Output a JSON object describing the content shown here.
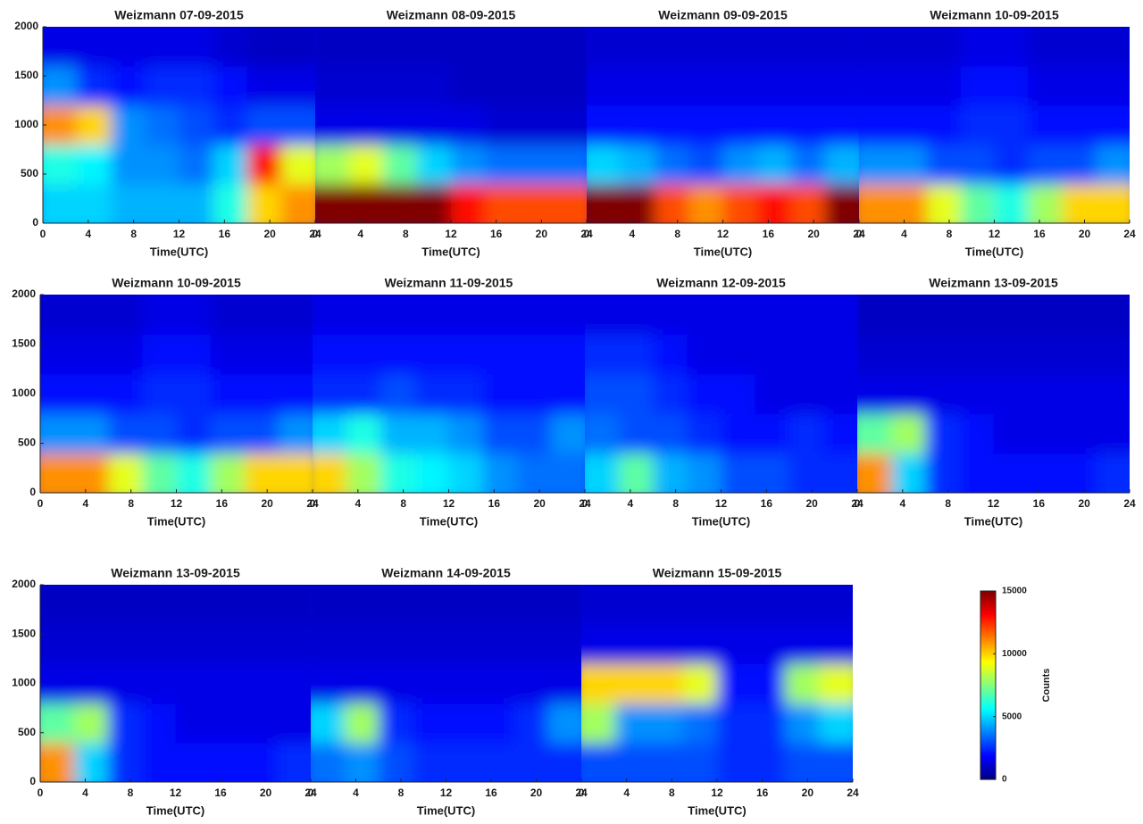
{
  "chart_data": [
    {
      "type": "heatmap",
      "title": "Weizmann 07-09-2015",
      "xlabel": "Time(UTC)",
      "xlim": [
        0,
        24
      ],
      "xticks": [
        0,
        4,
        8,
        12,
        16,
        20,
        24
      ],
      "ylim": [
        0,
        2000
      ],
      "yticks": [
        0,
        500,
        1000,
        1500,
        2000
      ],
      "xbins": [
        0,
        3,
        6,
        9,
        12,
        15,
        18,
        21,
        24
      ],
      "ybins": [
        0,
        400,
        800,
        1200,
        1600,
        2000
      ],
      "z": [
        [
          5000,
          5000,
          4500,
          4500,
          4500,
          6000,
          10000,
          11000
        ],
        [
          6000,
          5500,
          4000,
          4000,
          3500,
          5000,
          13000,
          9000
        ],
        [
          11000,
          10000,
          4000,
          3500,
          3000,
          2500,
          3000,
          3000
        ],
        [
          4000,
          2500,
          2000,
          2500,
          2500,
          2000,
          1500,
          1500
        ],
        [
          1500,
          1500,
          1500,
          1500,
          1500,
          1200,
          1000,
          1000
        ]
      ]
    },
    {
      "type": "heatmap",
      "title": "Weizmann 08-09-2015",
      "xlabel": "Time(UTC)",
      "xlim": [
        0,
        24
      ],
      "xticks": [
        0,
        4,
        8,
        12,
        16,
        20,
        24
      ],
      "ylim": [
        0,
        2000
      ],
      "xbins": [
        0,
        3,
        6,
        9,
        12,
        15,
        18,
        21,
        24
      ],
      "ybins": [
        0,
        400,
        800,
        1200,
        1600,
        2000
      ],
      "z": [
        [
          15000,
          15000,
          15000,
          15000,
          13000,
          12000,
          12000,
          12000
        ],
        [
          8000,
          9000,
          7000,
          5000,
          4000,
          3500,
          3500,
          3500
        ],
        [
          1500,
          1500,
          1500,
          1500,
          1500,
          1200,
          1200,
          1200
        ],
        [
          1200,
          1200,
          1200,
          1200,
          1000,
          1000,
          1000,
          1000
        ],
        [
          1000,
          1000,
          1000,
          1000,
          1000,
          1000,
          1000,
          1000
        ]
      ]
    },
    {
      "type": "heatmap",
      "title": "Weizmann 09-09-2015",
      "xlabel": "Time(UTC)",
      "xlim": [
        0,
        24
      ],
      "xticks": [
        0,
        4,
        8,
        12,
        16,
        20,
        24
      ],
      "ylim": [
        0,
        2000
      ],
      "xbins": [
        0,
        3,
        6,
        9,
        12,
        15,
        18,
        21,
        24
      ],
      "ybins": [
        0,
        400,
        800,
        1200,
        1600,
        2000
      ],
      "z": [
        [
          15000,
          15000,
          12000,
          11000,
          12000,
          13000,
          12000,
          15000
        ],
        [
          5000,
          4500,
          3500,
          3000,
          4000,
          4500,
          3500,
          4500
        ],
        [
          2000,
          2000,
          2000,
          2000,
          2000,
          2000,
          2000,
          2000
        ],
        [
          1500,
          1500,
          1500,
          1500,
          1500,
          1500,
          1500,
          1500
        ],
        [
          1200,
          1200,
          1200,
          1200,
          1200,
          1200,
          1200,
          1200
        ]
      ]
    },
    {
      "type": "heatmap",
      "title": "Weizmann 10-09-2015",
      "xlabel": "Time(UTC)",
      "xlim": [
        0,
        24
      ],
      "xticks": [
        0,
        4,
        8,
        12,
        16,
        20,
        24
      ],
      "ylim": [
        0,
        2000
      ],
      "xbins": [
        0,
        3,
        6,
        9,
        12,
        15,
        18,
        21,
        24
      ],
      "ybins": [
        0,
        400,
        800,
        1200,
        1600,
        2000
      ],
      "z": [
        [
          11000,
          11000,
          9000,
          7000,
          6000,
          8000,
          10000,
          10000
        ],
        [
          4000,
          4000,
          3000,
          3000,
          2500,
          3000,
          3000,
          4000
        ],
        [
          2000,
          2000,
          2000,
          2500,
          2500,
          2000,
          2000,
          2000
        ],
        [
          1500,
          1500,
          1500,
          2000,
          2000,
          1500,
          1500,
          1500
        ],
        [
          1200,
          1200,
          1200,
          1500,
          1500,
          1200,
          1200,
          1200
        ]
      ]
    },
    {
      "type": "heatmap",
      "title": "Weizmann 10-09-2015",
      "xlabel": "Time(UTC)",
      "xlim": [
        0,
        24
      ],
      "xticks": [
        0,
        4,
        8,
        12,
        16,
        20,
        24
      ],
      "ylim": [
        0,
        2000
      ],
      "yticks": [
        0,
        500,
        1000,
        1500,
        2000
      ],
      "xbins": [
        0,
        3,
        6,
        9,
        12,
        15,
        18,
        21,
        24
      ],
      "ybins": [
        0,
        400,
        800,
        1200,
        1600,
        2000
      ],
      "z": [
        [
          11000,
          11000,
          9000,
          7000,
          6000,
          8000,
          10000,
          10000
        ],
        [
          4000,
          4000,
          3000,
          3000,
          2500,
          3000,
          3000,
          4000
        ],
        [
          2000,
          2000,
          2000,
          2500,
          2500,
          2000,
          2000,
          2000
        ],
        [
          1500,
          1500,
          1500,
          2000,
          2000,
          1500,
          1500,
          1500
        ],
        [
          1200,
          1200,
          1200,
          1500,
          1500,
          1200,
          1200,
          1200
        ]
      ]
    },
    {
      "type": "heatmap",
      "title": "Weizmann 11-09-2015",
      "xlabel": "Time(UTC)",
      "xlim": [
        0,
        24
      ],
      "xticks": [
        0,
        4,
        8,
        12,
        16,
        20,
        24
      ],
      "ylim": [
        0,
        2000
      ],
      "xbins": [
        0,
        3,
        6,
        9,
        12,
        15,
        18,
        21,
        24
      ],
      "ybins": [
        0,
        400,
        800,
        1200,
        1600,
        2000
      ],
      "z": [
        [
          10000,
          8000,
          6000,
          5500,
          5000,
          4000,
          3500,
          3500
        ],
        [
          5000,
          6000,
          4500,
          4500,
          4000,
          3000,
          3000,
          4000
        ],
        [
          2500,
          2500,
          3000,
          2500,
          2500,
          2000,
          2000,
          2000
        ],
        [
          2000,
          2000,
          2000,
          2000,
          2000,
          2000,
          2000,
          2000
        ],
        [
          1500,
          1500,
          1500,
          1500,
          1500,
          1500,
          1500,
          1500
        ]
      ]
    },
    {
      "type": "heatmap",
      "title": "Weizmann 12-09-2015",
      "xlabel": "Time(UTC)",
      "xlim": [
        0,
        24
      ],
      "xticks": [
        0,
        4,
        8,
        12,
        16,
        20,
        24
      ],
      "ylim": [
        0,
        2000
      ],
      "xbins": [
        0,
        3,
        6,
        9,
        12,
        15,
        18,
        21,
        24
      ],
      "ybins": [
        0,
        400,
        800,
        1200,
        1600,
        2000
      ],
      "z": [
        [
          5000,
          7000,
          4500,
          4000,
          3000,
          3000,
          2500,
          2500
        ],
        [
          3500,
          3000,
          3000,
          2500,
          2000,
          2000,
          2500,
          2000
        ],
        [
          3000,
          3000,
          2500,
          2000,
          2000,
          1500,
          1500,
          1500
        ],
        [
          2500,
          2500,
          2000,
          1500,
          1500,
          1500,
          1500,
          1500
        ],
        [
          1500,
          1500,
          1500,
          1500,
          1500,
          1500,
          1500,
          1500
        ]
      ]
    },
    {
      "type": "heatmap",
      "title": "Weizmann 13-09-2015",
      "xlabel": "Time(UTC)",
      "xlim": [
        0,
        24
      ],
      "xticks": [
        0,
        4,
        8,
        12,
        16,
        20,
        24
      ],
      "ylim": [
        0,
        2000
      ],
      "xbins": [
        0,
        3,
        6,
        9,
        12,
        15,
        18,
        21,
        24
      ],
      "ybins": [
        0,
        400,
        800,
        1200,
        1600,
        2000
      ],
      "z": [
        [
          11000,
          5000,
          2500,
          2000,
          2000,
          2000,
          2000,
          2500
        ],
        [
          7000,
          8000,
          2500,
          2000,
          1500,
          1500,
          1500,
          1500
        ],
        [
          1500,
          1500,
          1500,
          1500,
          1500,
          1500,
          1500,
          1500
        ],
        [
          1200,
          1200,
          1200,
          1200,
          1200,
          1200,
          1200,
          1200
        ],
        [
          1000,
          1000,
          1000,
          1000,
          1000,
          1000,
          1000,
          1000
        ]
      ]
    },
    {
      "type": "heatmap",
      "title": "Weizmann 13-09-2015",
      "xlabel": "Time(UTC)",
      "xlim": [
        0,
        24
      ],
      "xticks": [
        0,
        4,
        8,
        12,
        16,
        20,
        24
      ],
      "ylim": [
        0,
        2000
      ],
      "yticks": [
        0,
        500,
        1000,
        1500,
        2000
      ],
      "xbins": [
        0,
        3,
        6,
        9,
        12,
        15,
        18,
        21,
        24
      ],
      "ybins": [
        0,
        400,
        800,
        1200,
        1600,
        2000
      ],
      "z": [
        [
          11000,
          5000,
          2500,
          2000,
          2000,
          2000,
          2000,
          2500
        ],
        [
          7000,
          8000,
          2500,
          2000,
          1500,
          1500,
          1500,
          1500
        ],
        [
          1500,
          1500,
          1500,
          1500,
          1500,
          1500,
          1500,
          1500
        ],
        [
          1200,
          1200,
          1200,
          1200,
          1200,
          1200,
          1200,
          1200
        ],
        [
          1000,
          1000,
          1000,
          1000,
          1000,
          1000,
          1000,
          1000
        ]
      ]
    },
    {
      "type": "heatmap",
      "title": "Weizmann 14-09-2015",
      "xlabel": "Time(UTC)",
      "xlim": [
        0,
        24
      ],
      "xticks": [
        0,
        4,
        8,
        12,
        16,
        20,
        24
      ],
      "ylim": [
        0,
        2000
      ],
      "xbins": [
        0,
        3,
        6,
        9,
        12,
        15,
        18,
        21,
        24
      ],
      "ybins": [
        0,
        400,
        800,
        1200,
        1600,
        2000
      ],
      "z": [
        [
          3500,
          4000,
          3000,
          2500,
          2500,
          2500,
          2500,
          2500
        ],
        [
          5000,
          8000,
          2500,
          2000,
          2000,
          2000,
          2500,
          4000
        ],
        [
          1500,
          1500,
          1500,
          1500,
          1500,
          1500,
          1500,
          1500
        ],
        [
          1200,
          1200,
          1200,
          1200,
          1200,
          1200,
          1200,
          1200
        ],
        [
          1000,
          1000,
          1000,
          1000,
          1000,
          1000,
          1000,
          1000
        ]
      ]
    },
    {
      "type": "heatmap",
      "title": "Weizmann 15-09-2015",
      "xlabel": "Time(UTC)",
      "xlim": [
        0,
        24
      ],
      "xticks": [
        0,
        4,
        8,
        12,
        16,
        20,
        24
      ],
      "ylim": [
        0,
        2000
      ],
      "xbins": [
        0,
        3,
        6,
        9,
        12,
        15,
        18,
        21,
        24
      ],
      "ybins": [
        0,
        400,
        800,
        1200,
        1600,
        2000
      ],
      "z": [
        [
          3000,
          3000,
          3000,
          3000,
          2500,
          2500,
          3000,
          3000
        ],
        [
          8000,
          4000,
          4000,
          3500,
          2500,
          2500,
          4000,
          5000
        ],
        [
          10000,
          10000,
          10000,
          9000,
          2000,
          2000,
          8000,
          9000
        ],
        [
          1500,
          1500,
          1500,
          1500,
          1500,
          1500,
          1500,
          1500
        ],
        [
          1200,
          1200,
          1200,
          1200,
          1200,
          1200,
          1200,
          1200
        ]
      ]
    },
    {
      "type": "colorbar",
      "label": "Counts",
      "colormap": "jet",
      "lim": [
        0,
        15000
      ],
      "ticks": [
        0,
        5000,
        10000,
        15000
      ]
    }
  ]
}
